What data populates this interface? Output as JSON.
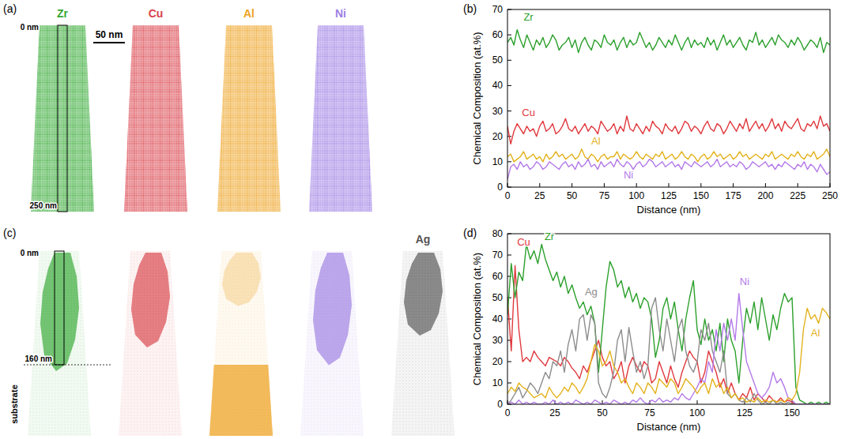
{
  "figure": {
    "panel_labels": [
      "(a)",
      "(b)",
      "(c)",
      "(d)"
    ],
    "map_a": {
      "elements": [
        {
          "name": "Zr",
          "color": "#33a833"
        },
        {
          "name": "Cu",
          "color": "#d9434b"
        },
        {
          "name": "Al",
          "color": "#eda323"
        },
        {
          "name": "Ni",
          "color": "#9d7fe3"
        }
      ],
      "top_label": "0 nm",
      "bottom_label": "250 nm",
      "scale_bar": "50 nm"
    },
    "map_c": {
      "colors": [
        "#33a833",
        "#d9434b",
        "#eda323",
        "#9d7fe3",
        "#555555"
      ],
      "label": "Ag",
      "top_label": "0 nm",
      "interface_label": "160 nm",
      "substrate_label": "substrate"
    }
  },
  "chart_data": [
    {
      "type": "line",
      "xlabel": "Distance (nm)",
      "ylabel": "Chemical Composition (at.%)",
      "xlim": [
        0,
        250
      ],
      "xticks": [
        0,
        25,
        50,
        75,
        100,
        125,
        150,
        175,
        200,
        225,
        250
      ],
      "ylim": [
        0,
        70
      ],
      "yticks": [
        0,
        10,
        20,
        30,
        40,
        50,
        60,
        70
      ],
      "x": [
        0,
        2.5,
        5,
        7.5,
        10,
        12.5,
        15,
        17.5,
        20,
        22.5,
        25,
        27.5,
        30,
        32.5,
        35,
        37.5,
        40,
        42.5,
        45,
        47.5,
        50,
        52.5,
        55,
        57.5,
        60,
        62.5,
        65,
        67.5,
        70,
        72.5,
        75,
        77.5,
        80,
        82.5,
        85,
        87.5,
        90,
        92.5,
        95,
        97.5,
        100,
        102.5,
        105,
        107.5,
        110,
        112.5,
        115,
        117.5,
        120,
        122.5,
        125,
        127.5,
        130,
        132.5,
        135,
        137.5,
        140,
        142.5,
        145,
        147.5,
        150,
        152.5,
        155,
        157.5,
        160,
        162.5,
        165,
        167.5,
        170,
        172.5,
        175,
        177.5,
        180,
        182.5,
        185,
        187.5,
        190,
        192.5,
        195,
        197.5,
        200,
        202.5,
        205,
        207.5,
        210,
        212.5,
        215,
        217.5,
        220,
        222.5,
        225,
        227.5,
        230,
        232.5,
        235,
        237.5,
        240,
        242.5,
        245,
        247.5,
        250
      ],
      "series": [
        {
          "name": "Zr",
          "color": "#2ca02c",
          "values": [
            57,
            59,
            56,
            62,
            58,
            55,
            60,
            57,
            54,
            58,
            56,
            59,
            55,
            57,
            60,
            58,
            54,
            56,
            57,
            59,
            55,
            58,
            53,
            57,
            59,
            56,
            54,
            58,
            57,
            55,
            60,
            57,
            56,
            58,
            54,
            57,
            59,
            55,
            58,
            56,
            57,
            61,
            58,
            55,
            57,
            54,
            56,
            59,
            57,
            55,
            58,
            56,
            60,
            57,
            54,
            57,
            59,
            55,
            58,
            56,
            57,
            55,
            59,
            56,
            58,
            54,
            57,
            60,
            56,
            58,
            55,
            57,
            59,
            56,
            54,
            58,
            57,
            61,
            56,
            58,
            55,
            57,
            59,
            56,
            60,
            58,
            57,
            55,
            58,
            56,
            59,
            57,
            54,
            56,
            58,
            57,
            55,
            59,
            53,
            57,
            56
          ]
        },
        {
          "name": "Cu",
          "color": "#e0393e",
          "values": [
            24,
            17,
            22,
            25,
            23,
            21,
            24,
            22,
            23,
            20,
            24,
            26,
            22,
            23,
            25,
            21,
            22,
            24,
            27,
            23,
            22,
            24,
            21,
            23,
            25,
            22,
            24,
            23,
            21,
            26,
            24,
            22,
            23,
            25,
            21,
            24,
            22,
            28,
            23,
            22,
            25,
            23,
            21,
            24,
            22,
            26,
            24,
            23,
            21,
            25,
            23,
            22,
            24,
            21,
            23,
            26,
            25,
            22,
            24,
            23,
            21,
            24,
            26,
            23,
            22,
            25,
            24,
            21,
            23,
            26,
            24,
            22,
            25,
            23,
            27,
            22,
            24,
            26,
            23,
            25,
            22,
            24,
            27,
            23,
            25,
            22,
            26,
            24,
            23,
            25,
            27,
            23,
            22,
            25,
            24,
            26,
            23,
            28,
            24,
            25,
            22
          ]
        },
        {
          "name": "Al",
          "color": "#e3b21c",
          "values": [
            12,
            13,
            10,
            11,
            12,
            14,
            11,
            12,
            13,
            11,
            12,
            10,
            13,
            11,
            12,
            14,
            12,
            13,
            11,
            12,
            13,
            11,
            12,
            15,
            12,
            11,
            13,
            12,
            10,
            12,
            13,
            11,
            12,
            12,
            14,
            11,
            13,
            12,
            11,
            12,
            14,
            12,
            11,
            13,
            12,
            11,
            13,
            12,
            14,
            11,
            12,
            13,
            11,
            12,
            14,
            12,
            11,
            13,
            12,
            10,
            12,
            13,
            11,
            12,
            14,
            12,
            13,
            11,
            12,
            13,
            11,
            12,
            14,
            12,
            13,
            11,
            12,
            13,
            12,
            11,
            13,
            12,
            14,
            11,
            12,
            13,
            12,
            11,
            13,
            12,
            14,
            12,
            11,
            13,
            12,
            14,
            11,
            12,
            13,
            15,
            12
          ]
        },
        {
          "name": "Ni",
          "color": "#b47ae8",
          "values": [
            3,
            8,
            9,
            7,
            10,
            8,
            9,
            7,
            8,
            10,
            9,
            7,
            8,
            10,
            9,
            8,
            7,
            9,
            10,
            8,
            9,
            7,
            10,
            8,
            9,
            11,
            8,
            9,
            7,
            10,
            8,
            9,
            10,
            8,
            11,
            9,
            8,
            10,
            9,
            7,
            9,
            10,
            8,
            9,
            11,
            10,
            8,
            9,
            10,
            8,
            9,
            10,
            8,
            9,
            7,
            10,
            9,
            8,
            10,
            9,
            8,
            9,
            10,
            8,
            9,
            11,
            8,
            9,
            10,
            8,
            9,
            8,
            10,
            9,
            7,
            8,
            10,
            9,
            8,
            9,
            10,
            8,
            9,
            7,
            9,
            8,
            10,
            9,
            8,
            7,
            9,
            8,
            10,
            7,
            9,
            8,
            6,
            9,
            7,
            5,
            6
          ]
        }
      ]
    },
    {
      "type": "line",
      "xlabel": "Distance (nm)",
      "ylabel": "Chemical Composition (at.%)",
      "xlim": [
        0,
        170
      ],
      "xticks": [
        0,
        25,
        50,
        75,
        100,
        125,
        150
      ],
      "ylim": [
        0,
        80
      ],
      "yticks": [
        0,
        10,
        20,
        30,
        40,
        50,
        60,
        70,
        80
      ],
      "x": [
        0,
        2,
        4,
        6,
        8,
        10,
        12,
        14,
        16,
        18,
        20,
        22,
        24,
        26,
        28,
        30,
        32,
        34,
        36,
        38,
        40,
        42,
        44,
        46,
        48,
        50,
        52,
        54,
        56,
        58,
        60,
        62,
        64,
        66,
        68,
        70,
        72,
        74,
        76,
        78,
        80,
        82,
        84,
        86,
        88,
        90,
        92,
        94,
        96,
        98,
        100,
        102,
        104,
        106,
        108,
        110,
        112,
        114,
        116,
        118,
        120,
        122,
        124,
        126,
        128,
        130,
        132,
        134,
        136,
        138,
        140,
        142,
        144,
        146,
        148,
        150,
        152,
        154,
        156,
        158,
        160,
        162,
        164,
        166,
        168,
        170
      ],
      "series": [
        {
          "name": "Cu",
          "color": "#e0393e",
          "values": [
            50,
            25,
            65,
            35,
            20,
            22,
            20,
            25,
            22,
            20,
            18,
            22,
            21,
            20,
            18,
            22,
            20,
            17,
            15,
            12,
            18,
            15,
            20,
            25,
            30,
            22,
            18,
            20,
            12,
            15,
            20,
            10,
            18,
            22,
            18,
            15,
            20,
            18,
            10,
            12,
            20,
            15,
            10,
            18,
            12,
            8,
            15,
            20,
            25,
            22,
            20,
            10,
            15,
            25,
            20,
            15,
            8,
            12,
            5,
            10,
            5,
            2,
            5,
            3,
            8,
            2,
            5,
            3,
            1,
            4,
            2,
            1,
            3,
            1,
            2,
            1,
            0,
            0,
            0,
            0,
            0,
            0,
            0,
            0,
            0,
            0
          ]
        },
        {
          "name": "Zr",
          "color": "#2ca02c",
          "values": [
            42,
            66,
            50,
            62,
            58,
            75,
            68,
            72,
            66,
            75,
            68,
            63,
            58,
            62,
            55,
            60,
            52,
            56,
            50,
            45,
            48,
            42,
            46,
            38,
            15,
            35,
            55,
            67,
            63,
            55,
            58,
            50,
            55,
            48,
            52,
            45,
            50,
            48,
            40,
            22,
            30,
            45,
            50,
            40,
            48,
            35,
            25,
            40,
            50,
            58,
            35,
            28,
            40,
            30,
            35,
            25,
            38,
            20,
            40,
            30,
            25,
            10,
            30,
            45,
            38,
            48,
            35,
            50,
            40,
            30,
            42,
            35,
            45,
            52,
            48,
            50,
            8,
            2,
            1,
            0,
            1,
            0,
            1,
            0,
            1,
            0
          ]
        },
        {
          "name": "Ag",
          "color": "#8c8c8c",
          "values": [
            0,
            2,
            5,
            8,
            3,
            6,
            10,
            8,
            5,
            10,
            15,
            12,
            20,
            18,
            25,
            15,
            28,
            35,
            25,
            40,
            42,
            30,
            42,
            38,
            10,
            5,
            3,
            8,
            15,
            30,
            35,
            20,
            36,
            25,
            15,
            20,
            12,
            18,
            45,
            50,
            35,
            25,
            40,
            30,
            20,
            35,
            40,
            25,
            18,
            15,
            20,
            35,
            30,
            38,
            25,
            20,
            15,
            25,
            5,
            3,
            5,
            2,
            1,
            3,
            1,
            5,
            2,
            0,
            1,
            0,
            2,
            0,
            1,
            0,
            1,
            0,
            0,
            0,
            0,
            0,
            0,
            0,
            0,
            0,
            0,
            0
          ]
        },
        {
          "name": "Ni",
          "color": "#b47ae8",
          "values": [
            0,
            1,
            0,
            2,
            0,
            1,
            0,
            1,
            0,
            0,
            1,
            0,
            2,
            0,
            1,
            0,
            1,
            0,
            2,
            1,
            0,
            1,
            0,
            2,
            1,
            0,
            1,
            0,
            2,
            1,
            0,
            1,
            0,
            2,
            1,
            3,
            1,
            0,
            2,
            1,
            3,
            1,
            2,
            1,
            3,
            2,
            5,
            3,
            2,
            5,
            8,
            12,
            10,
            20,
            15,
            35,
            25,
            38,
            30,
            40,
            30,
            52,
            35,
            20,
            15,
            10,
            5,
            3,
            5,
            8,
            15,
            10,
            12,
            8,
            3,
            2,
            0,
            0,
            0,
            0,
            0,
            0,
            0,
            0,
            0,
            0
          ]
        },
        {
          "name": "Al",
          "color": "#e3b21c",
          "values": [
            5,
            8,
            6,
            10,
            8,
            7,
            5,
            3,
            4,
            5,
            3,
            8,
            5,
            3,
            5,
            8,
            6,
            10,
            8,
            5,
            8,
            12,
            20,
            28,
            25,
            18,
            20,
            25,
            18,
            15,
            10,
            12,
            8,
            5,
            10,
            8,
            5,
            10,
            8,
            5,
            12,
            10,
            8,
            12,
            10,
            5,
            8,
            12,
            10,
            8,
            5,
            8,
            10,
            5,
            12,
            8,
            10,
            5,
            8,
            3,
            5,
            2,
            3,
            1,
            2,
            1,
            3,
            1,
            2,
            1,
            2,
            1,
            2,
            1,
            3,
            2,
            5,
            15,
            35,
            45,
            40,
            42,
            38,
            45,
            43,
            40
          ]
        }
      ]
    }
  ]
}
